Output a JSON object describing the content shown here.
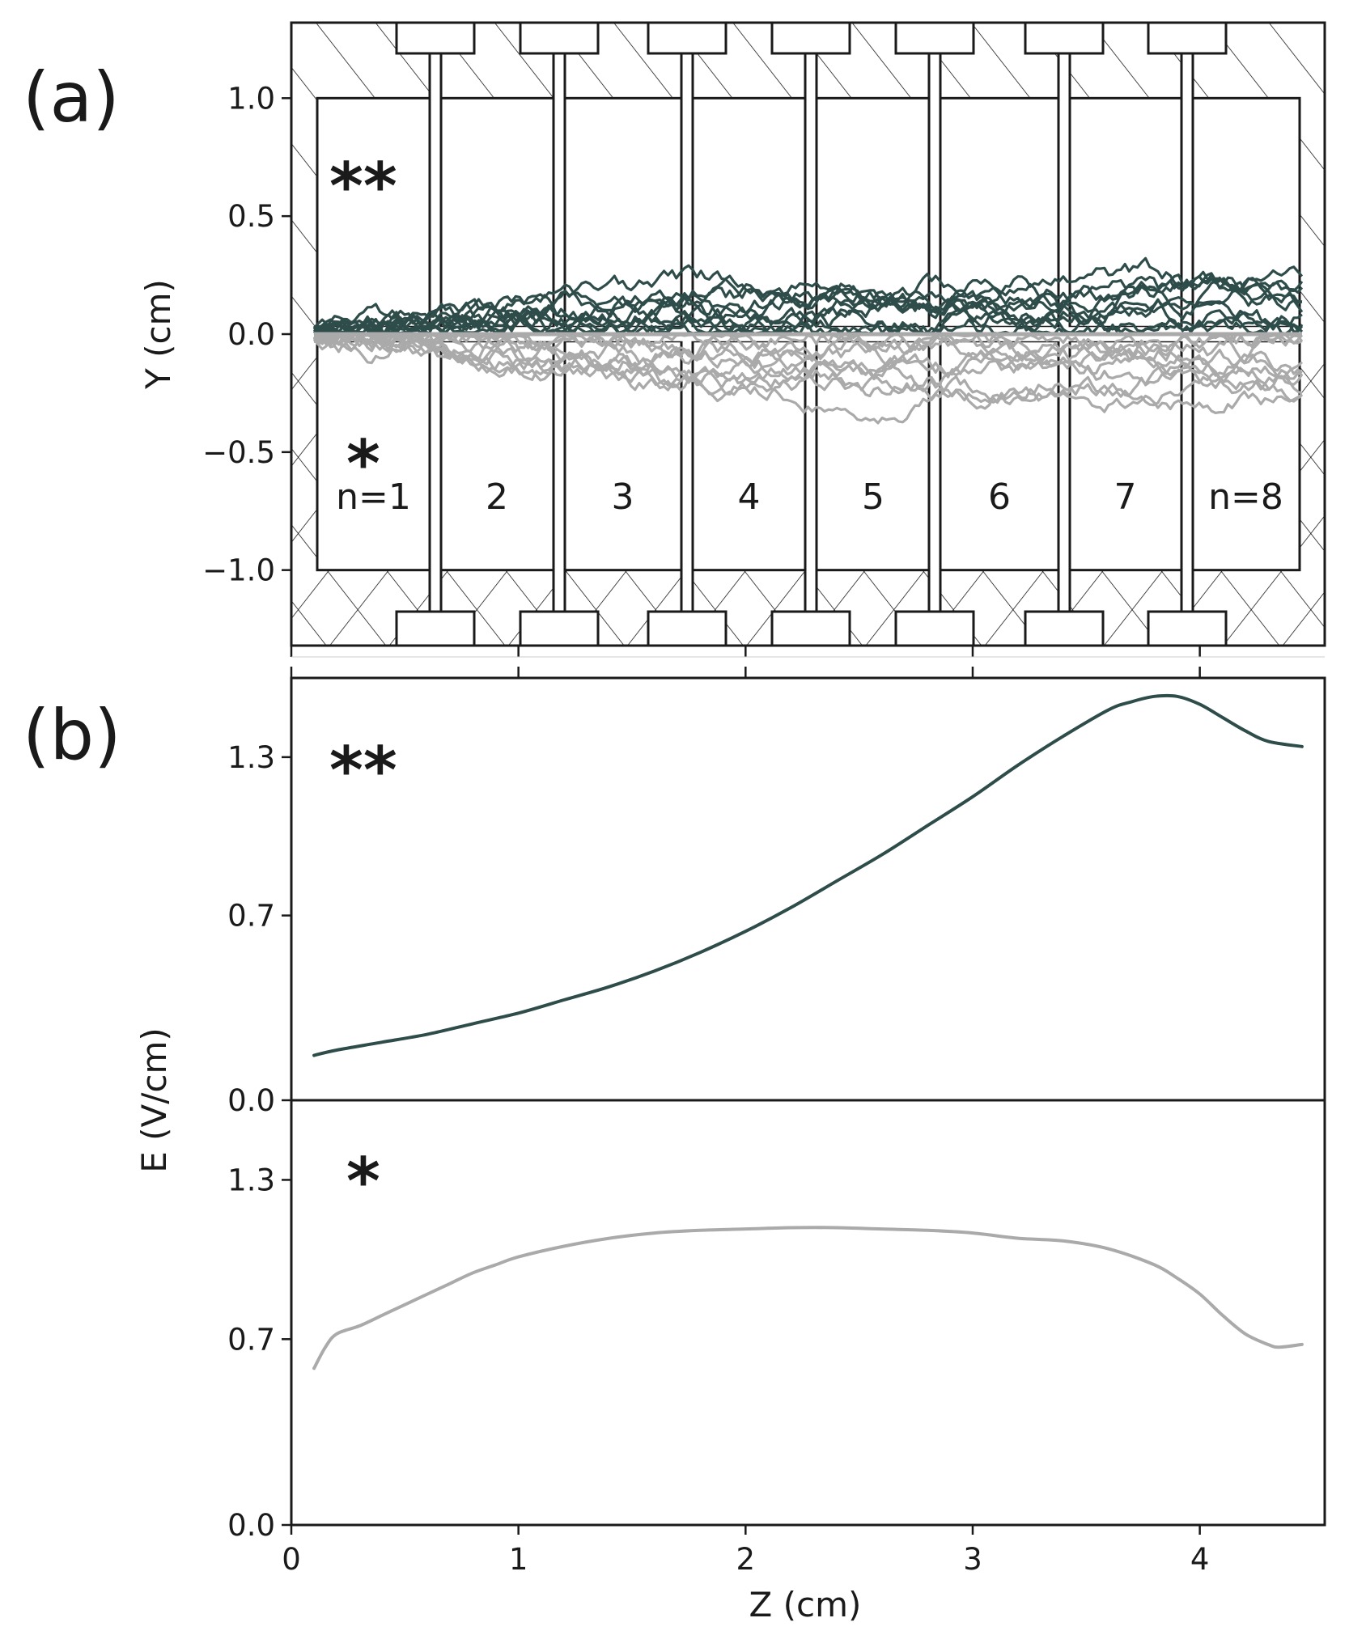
{
  "panels": {
    "a": {
      "label": "(a)"
    },
    "b": {
      "label": "(b)"
    }
  },
  "region_labels": [
    "n=1",
    "2",
    "3",
    "4",
    "5",
    "6",
    "7",
    "n=8"
  ],
  "star_labels": {
    "upper": "**",
    "lower": "*"
  },
  "colors": {
    "upper_series": "#2e4d4a",
    "lower_series": "#aaaaaa",
    "axes": "#1a1a1a"
  },
  "chart_data": [
    {
      "type": "line",
      "id": "panel-a",
      "title": "",
      "xlabel": "",
      "ylabel": "Y (cm)",
      "xlim": [
        0,
        4.55
      ],
      "ylim": [
        -1.32,
        1.32
      ],
      "yticks": [
        1.0,
        0.5,
        0.0,
        -0.5,
        -1.0
      ],
      "ytick_labels": [
        "1.0",
        "0.5",
        "0.0",
        "−0.5",
        "−1.0"
      ],
      "notes": "Random-walk electron trajectories overlaid on an 8-electrode (n=1..8) structure; dark traces above Y=0, grey traces below Y=0.",
      "series": [
        {
          "name": "** trajectories (upper)",
          "color": "#2e4d4a",
          "count": 10,
          "z_start": 0.1,
          "z_end": 4.45,
          "y_range": [
            0.0,
            0.5
          ]
        },
        {
          "name": "* trajectories (lower)",
          "color": "#aaaaaa",
          "count": 10,
          "z_start": 0.1,
          "z_end": 4.45,
          "y_range": [
            -0.57,
            0.0
          ]
        }
      ]
    },
    {
      "type": "line",
      "id": "panel-b-upper",
      "title": "",
      "xlabel": "",
      "ylabel": "E (V/cm)",
      "xlim": [
        0,
        4.55
      ],
      "ylim": [
        0.0,
        1.6
      ],
      "yticks": [
        0.0,
        0.7,
        1.3
      ],
      "ytick_labels": [
        "0.0",
        "0.7",
        "1.3"
      ],
      "series": [
        {
          "name": "**",
          "color": "#2e4d4a",
          "x": [
            0.1,
            0.2,
            0.4,
            0.6,
            0.8,
            1.0,
            1.2,
            1.4,
            1.6,
            1.8,
            2.0,
            2.2,
            2.4,
            2.6,
            2.8,
            3.0,
            3.2,
            3.4,
            3.6,
            3.7,
            3.8,
            3.9,
            4.0,
            4.1,
            4.2,
            4.3,
            4.45
          ],
          "y": [
            0.17,
            0.19,
            0.22,
            0.25,
            0.29,
            0.33,
            0.38,
            0.43,
            0.49,
            0.56,
            0.64,
            0.73,
            0.83,
            0.93,
            1.04,
            1.15,
            1.27,
            1.38,
            1.48,
            1.51,
            1.53,
            1.53,
            1.5,
            1.45,
            1.4,
            1.36,
            1.34
          ]
        }
      ]
    },
    {
      "type": "line",
      "id": "panel-b-lower",
      "title": "",
      "xlabel": "Z (cm)",
      "ylabel": "E (V/cm)",
      "xlim": [
        0,
        4.55
      ],
      "ylim": [
        0.0,
        1.6
      ],
      "yticks": [
        0.0,
        0.7,
        1.3
      ],
      "ytick_labels": [
        "0.0",
        "0.7",
        "1.3"
      ],
      "xticks": [
        0,
        1,
        2,
        3,
        4
      ],
      "xtick_labels": [
        "0",
        "1",
        "2",
        "3",
        "4"
      ],
      "series": [
        {
          "name": "*",
          "color": "#aaaaaa",
          "x": [
            0.1,
            0.15,
            0.2,
            0.3,
            0.4,
            0.5,
            0.6,
            0.7,
            0.8,
            0.9,
            1.0,
            1.2,
            1.4,
            1.6,
            1.8,
            2.0,
            2.2,
            2.4,
            2.6,
            2.8,
            3.0,
            3.2,
            3.4,
            3.6,
            3.8,
            3.9,
            4.0,
            4.1,
            4.2,
            4.3,
            4.35,
            4.45
          ],
          "y": [
            0.59,
            0.67,
            0.72,
            0.75,
            0.79,
            0.83,
            0.87,
            0.91,
            0.95,
            0.98,
            1.01,
            1.05,
            1.08,
            1.1,
            1.11,
            1.115,
            1.12,
            1.12,
            1.115,
            1.11,
            1.1,
            1.08,
            1.07,
            1.04,
            0.98,
            0.93,
            0.87,
            0.79,
            0.72,
            0.68,
            0.67,
            0.68
          ]
        }
      ]
    }
  ]
}
